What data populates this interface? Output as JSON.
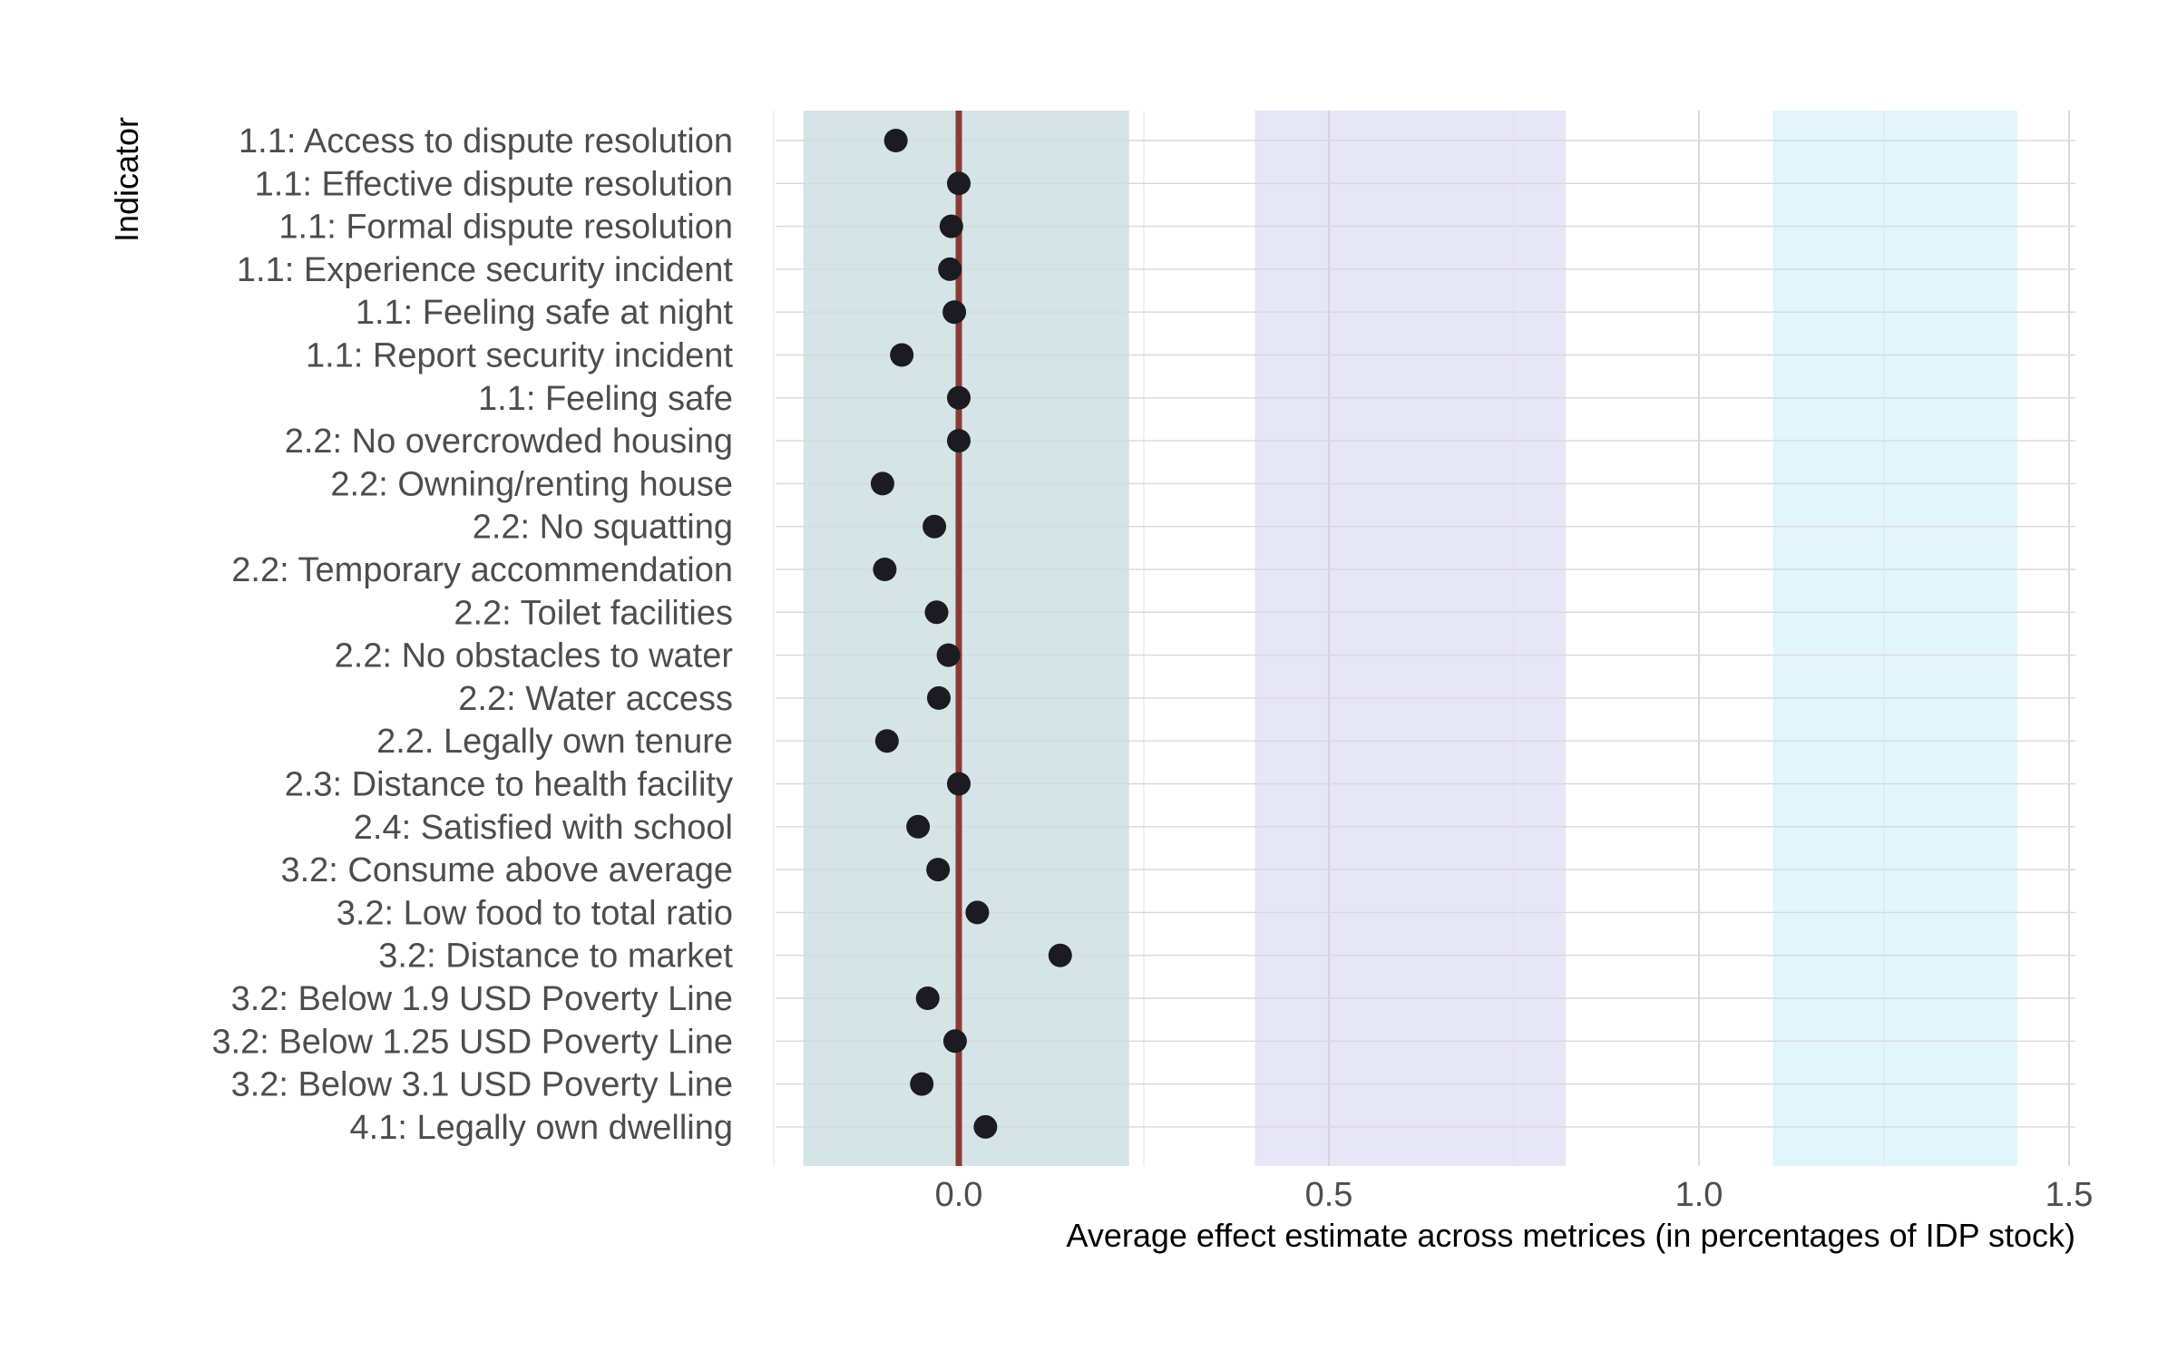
{
  "chart_data": {
    "type": "scatter",
    "ylabel": "Indicator",
    "xlabel": "Average effect estimate across metrices (in percentages of IDP stock)",
    "xlim": [
      -0.25,
      1.51
    ],
    "x_ticks": [
      0.0,
      0.5,
      1.0,
      1.5
    ],
    "x_tick_labels": [
      "0.0",
      "0.5",
      "1.0",
      "1.5"
    ],
    "grid": true,
    "reference_line": {
      "x": 0.0,
      "color": "#8b3a35"
    },
    "bands": [
      {
        "from": -0.21,
        "to": 0.23,
        "color": "#d5e4e6"
      },
      {
        "from": 0.4,
        "to": 0.82,
        "color": "#e6e6f7"
      },
      {
        "from": 1.1,
        "to": 1.43,
        "color": "#e1f5fb"
      }
    ],
    "point_color": "#1c1b22",
    "categories": [
      "1.1: Access to dispute resolution",
      "1.1: Effective dispute resolution",
      "1.1: Formal dispute resolution",
      "1.1: Experience security incident",
      "1.1: Feeling safe at night",
      "1.1: Report security incident",
      "1.1: Feeling safe",
      "2.2: No overcrowded housing",
      "2.2: Owning/renting house",
      "2.2: No squatting",
      "2.2: Temporary accommendation",
      "2.2: Toilet facilities",
      "2.2: No obstacles to water",
      "2.2: Water access",
      "2.2. Legally own tenure",
      "2.3: Distance to health facility",
      "2.4: Satisfied with school",
      "3.2: Consume above average",
      "3.2: Low food to total ratio",
      "3.2: Distance to market",
      "3.2: Below 1.9 USD Poverty Line",
      "3.2: Below 1.25 USD Poverty Line",
      "3.2: Below 3.1 USD Poverty Line",
      "4.1: Legally own dwelling"
    ],
    "values": [
      -0.085,
      0.0,
      -0.01,
      -0.012,
      -0.006,
      -0.077,
      0.0,
      0.0,
      -0.103,
      -0.033,
      -0.1,
      -0.03,
      -0.014,
      -0.027,
      -0.097,
      0.0,
      -0.055,
      -0.028,
      0.025,
      0.137,
      -0.042,
      -0.005,
      -0.05,
      0.036
    ]
  }
}
